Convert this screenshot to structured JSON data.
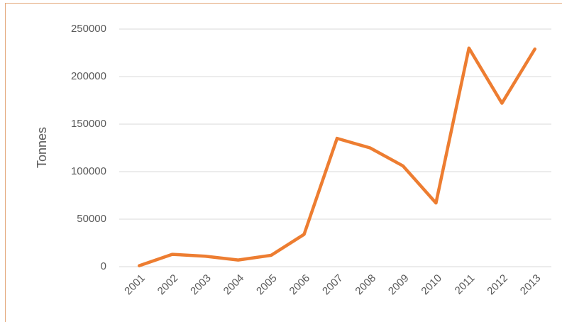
{
  "chart_data": {
    "type": "line",
    "y_label": "Tonnes",
    "categories": [
      "2001",
      "2002",
      "2003",
      "2004",
      "2005",
      "2006",
      "2007",
      "2008",
      "2009",
      "2010",
      "2011",
      "2012",
      "2013"
    ],
    "series": [
      {
        "color": "#ed7d31",
        "values": [
          1000,
          13000,
          11000,
          7000,
          12000,
          34000,
          135000,
          125000,
          106000,
          67000,
          230000,
          172000,
          229000
        ]
      }
    ],
    "ylim": [
      0,
      250000
    ],
    "yticks": [
      0,
      50000,
      100000,
      150000,
      200000,
      250000
    ],
    "grid": true
  }
}
